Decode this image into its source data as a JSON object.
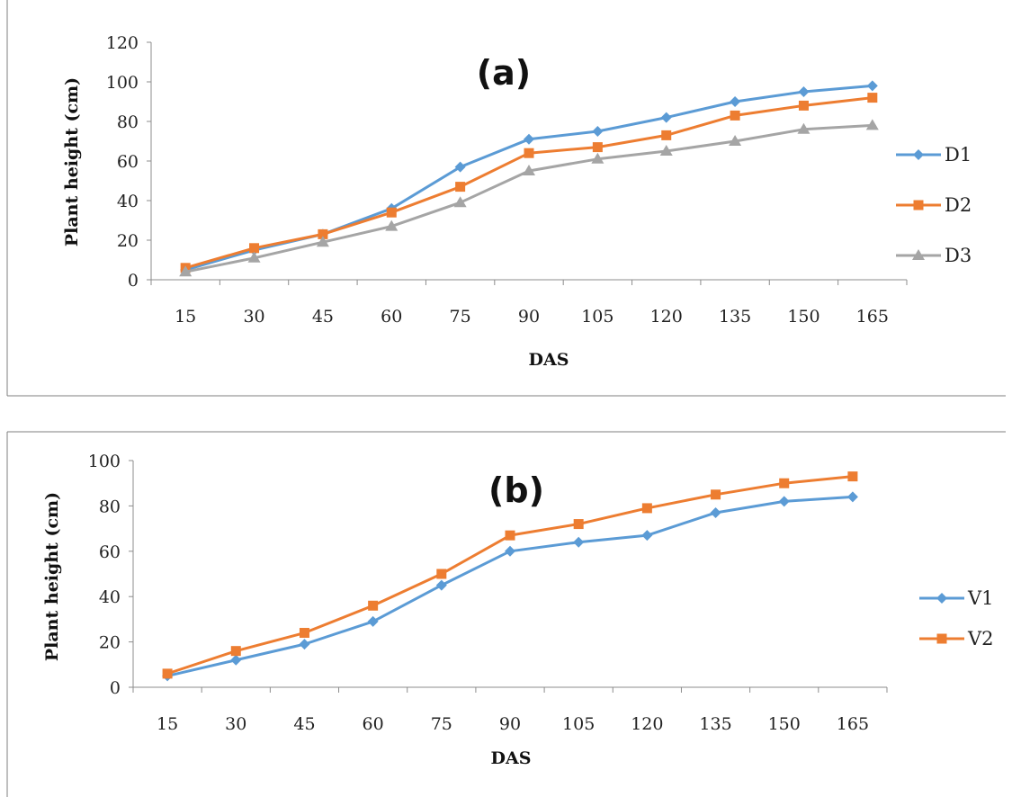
{
  "colors": {
    "blue": "#5b9bd5",
    "orange": "#ed7d31",
    "gray": "#a5a5a5"
  },
  "chart_data": [
    {
      "type": "line",
      "title": "(a)",
      "xlabel": "DAS",
      "ylabel": "Plant height (cm)",
      "categories": [
        "15",
        "30",
        "45",
        "60",
        "75",
        "90",
        "105",
        "120",
        "135",
        "150",
        "165"
      ],
      "ylim": [
        0,
        120
      ],
      "yticks": [
        "0",
        "20",
        "40",
        "60",
        "80",
        "100",
        "120"
      ],
      "legend_position": "right",
      "series": [
        {
          "name": "D1",
          "marker": "diamond",
          "color": "#5b9bd5",
          "values": [
            5,
            15,
            23,
            36,
            57,
            71,
            75,
            82,
            90,
            95,
            98
          ]
        },
        {
          "name": "D2",
          "marker": "square",
          "color": "#ed7d31",
          "values": [
            6,
            16,
            23,
            34,
            47,
            64,
            67,
            73,
            83,
            88,
            92
          ]
        },
        {
          "name": "D3",
          "marker": "triangle",
          "color": "#a5a5a5",
          "values": [
            4,
            11,
            19,
            27,
            39,
            55,
            61,
            65,
            70,
            76,
            78
          ]
        }
      ]
    },
    {
      "type": "line",
      "title": "(b)",
      "xlabel": "DAS",
      "ylabel": "Plant height (cm)",
      "categories": [
        "15",
        "30",
        "45",
        "60",
        "75",
        "90",
        "105",
        "120",
        "135",
        "150",
        "165"
      ],
      "ylim": [
        0,
        100
      ],
      "yticks": [
        "0",
        "20",
        "40",
        "60",
        "80",
        "100"
      ],
      "legend_position": "right",
      "series": [
        {
          "name": "V1",
          "marker": "diamond",
          "color": "#5b9bd5",
          "values": [
            5,
            12,
            19,
            29,
            45,
            60,
            64,
            67,
            77,
            82,
            84
          ]
        },
        {
          "name": "V2",
          "marker": "square",
          "color": "#ed7d31",
          "values": [
            6,
            16,
            24,
            36,
            50,
            67,
            72,
            79,
            85,
            90,
            93
          ]
        }
      ]
    }
  ]
}
